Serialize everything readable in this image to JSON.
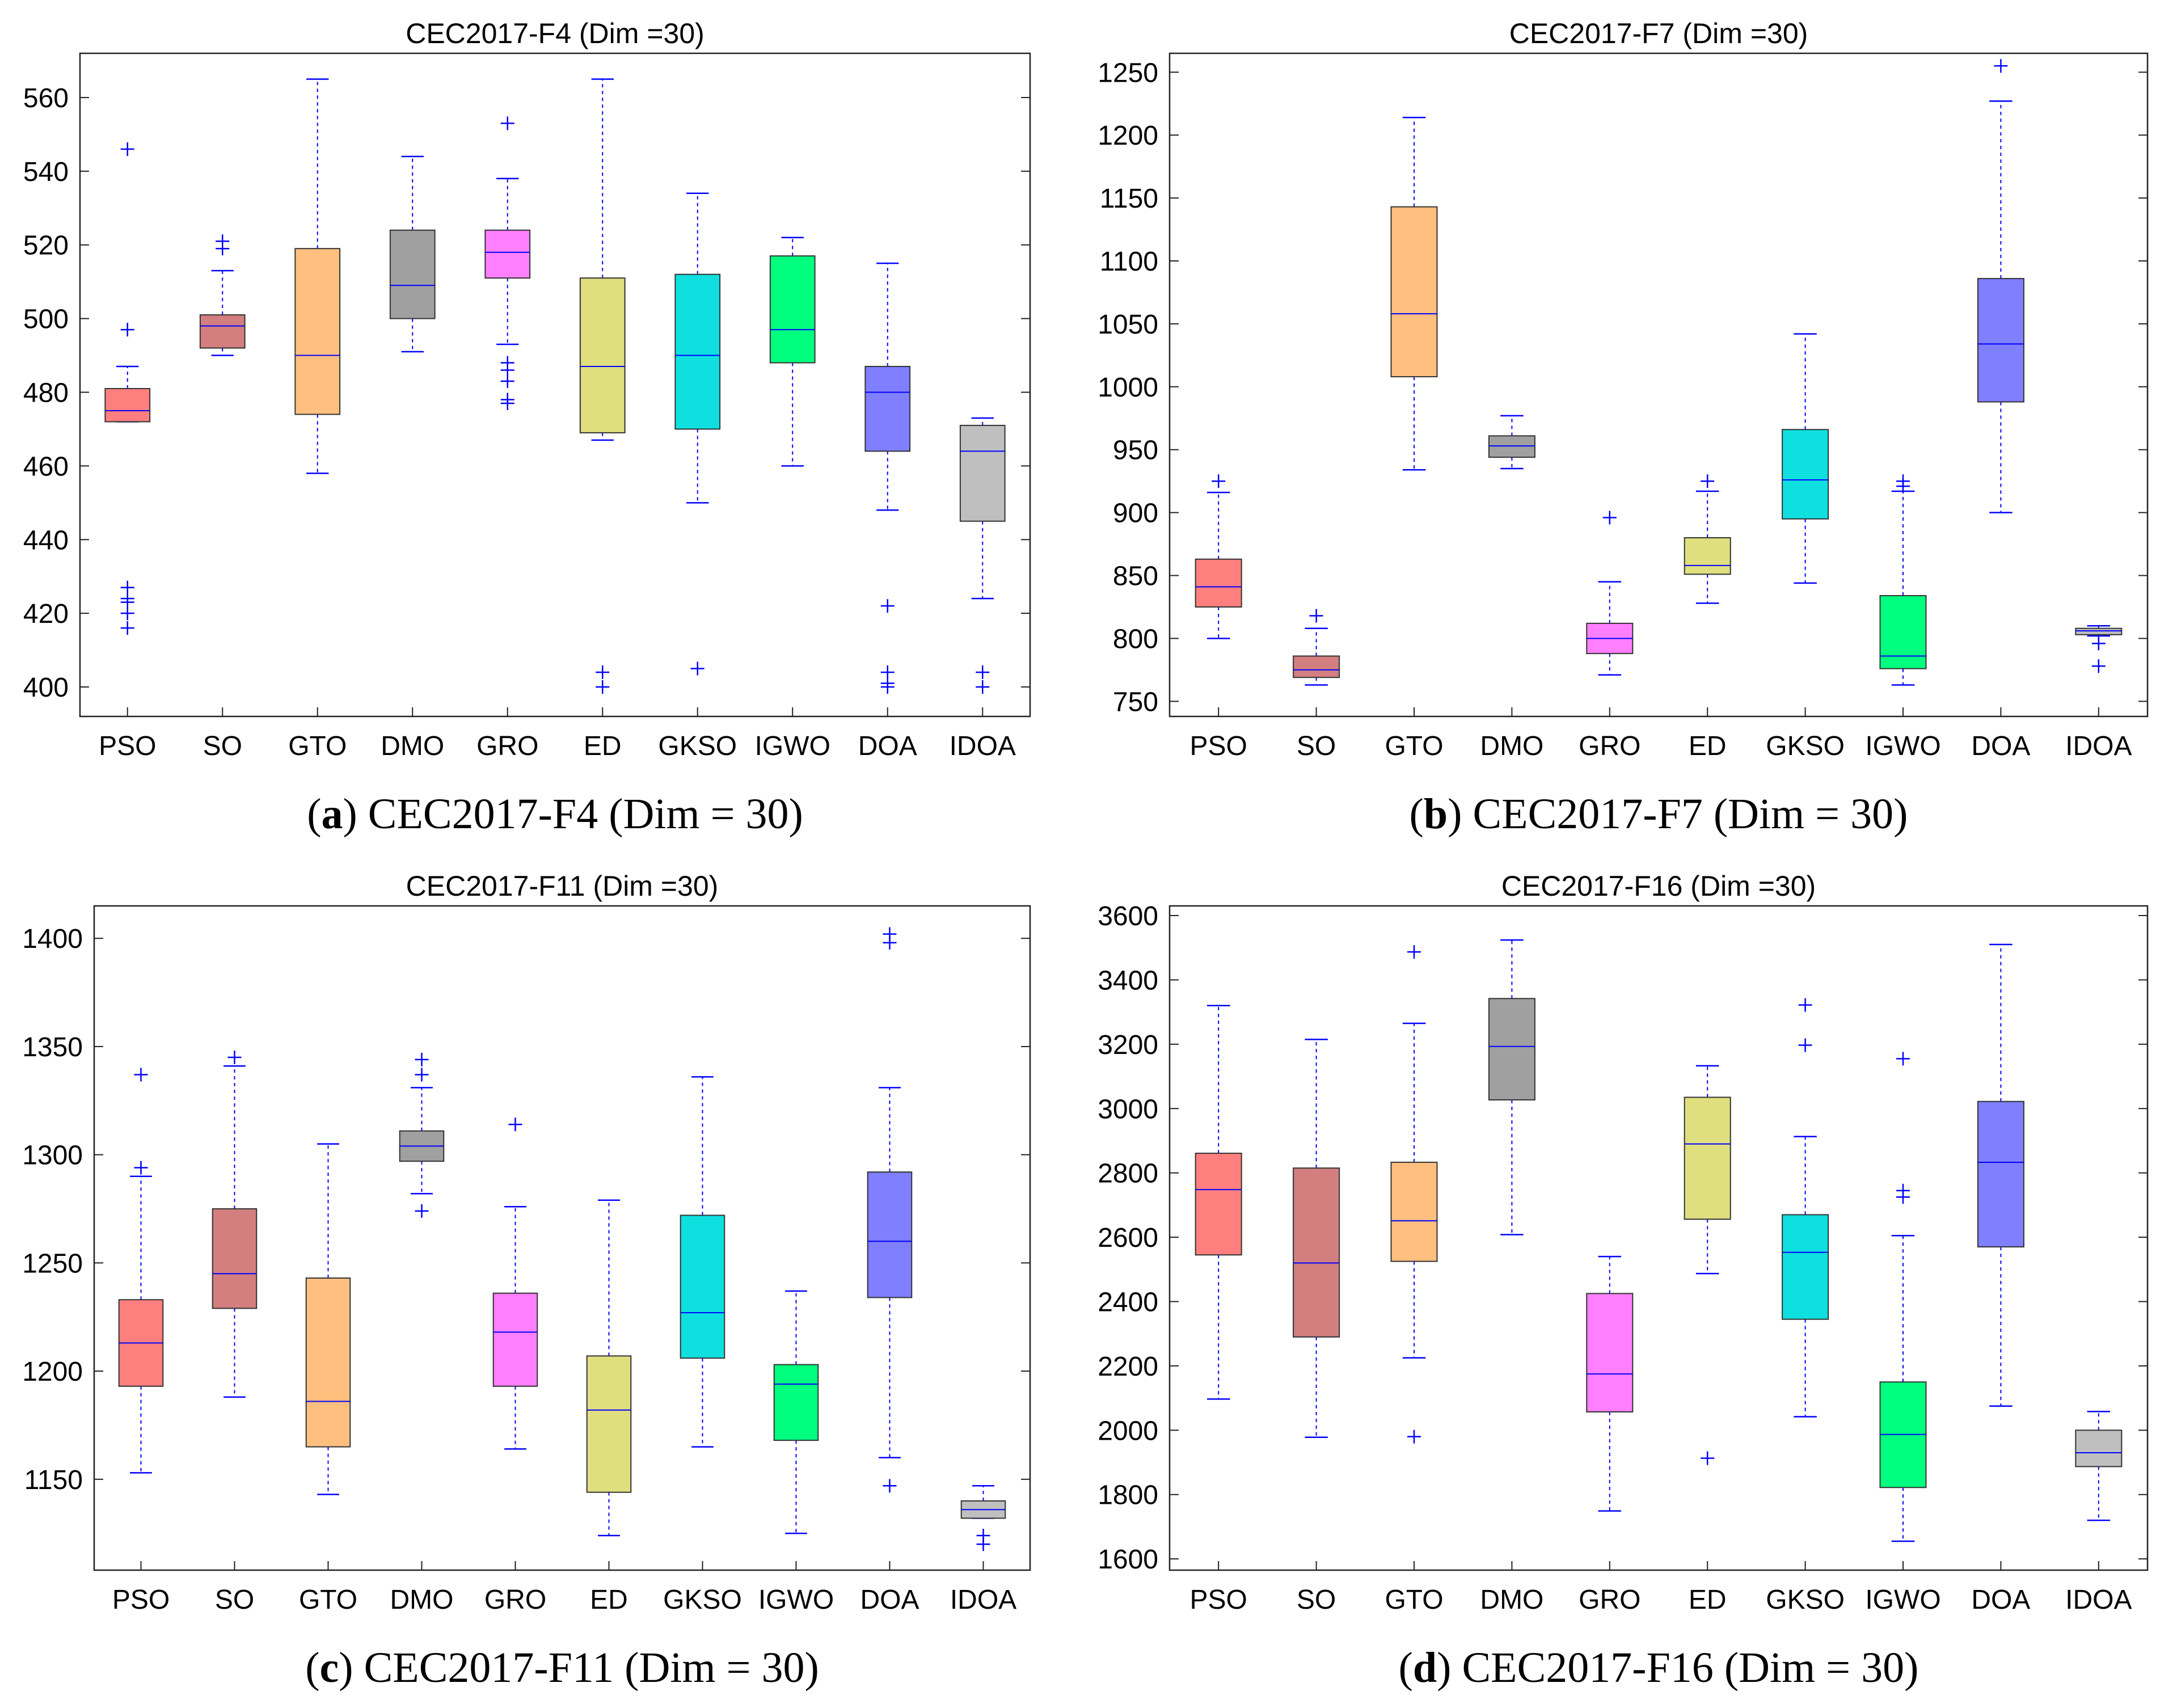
{
  "chart_data": [
    {
      "type": "boxplot",
      "title": "CEC2017-F4 (Dim =30)",
      "caption": {
        "letter": "a",
        "text": "CEC2017-F4 (Dim = 30)"
      },
      "ylim": [
        392,
        572
      ],
      "yticks": [
        400,
        420,
        440,
        460,
        480,
        500,
        520,
        540,
        560
      ],
      "categories": [
        "PSO",
        "SO",
        "GTO",
        "DMO",
        "GRO",
        "ED",
        "GKSO",
        "IGWO",
        "DOA",
        "IDOA"
      ],
      "boxes": [
        {
          "name": "PSO",
          "color": "#ff7f7f",
          "min": 472,
          "q1": 472,
          "median": 475,
          "q3": 481,
          "max": 487,
          "outliers": [
            546,
            497,
            427,
            424,
            423,
            420,
            416
          ]
        },
        {
          "name": "SO",
          "color": "#d37f7f",
          "min": 490,
          "q1": 492,
          "median": 498,
          "q3": 501,
          "max": 513,
          "outliers": [
            521,
            519
          ]
        },
        {
          "name": "GTO",
          "color": "#ffbf7f",
          "min": 458,
          "q1": 474,
          "median": 490,
          "q3": 519,
          "max": 565,
          "outliers": []
        },
        {
          "name": "DMO",
          "color": "#a0a0a0",
          "min": 491,
          "q1": 500,
          "median": 509,
          "q3": 524,
          "max": 544,
          "outliers": []
        },
        {
          "name": "GRO",
          "color": "#ff7fff",
          "min": 493,
          "q1": 511,
          "median": 518,
          "q3": 524,
          "max": 538,
          "outliers": [
            553,
            488,
            486,
            483,
            478,
            477
          ]
        },
        {
          "name": "ED",
          "color": "#dfdf7f",
          "min": 467,
          "q1": 469,
          "median": 487,
          "q3": 511,
          "max": 565,
          "outliers": [
            404,
            400
          ]
        },
        {
          "name": "GKSO",
          "color": "#0fdfdf",
          "min": 450,
          "q1": 470,
          "median": 490,
          "q3": 512,
          "max": 534,
          "outliers": [
            405
          ]
        },
        {
          "name": "IGWO",
          "color": "#00ff7f",
          "min": 460,
          "q1": 488,
          "median": 497,
          "q3": 517,
          "max": 522,
          "outliers": []
        },
        {
          "name": "DOA",
          "color": "#7f7fff",
          "min": 448,
          "q1": 464,
          "median": 480,
          "q3": 487,
          "max": 515,
          "outliers": [
            422,
            404,
            401,
            400
          ]
        },
        {
          "name": "IDOA",
          "color": "#bfbfbf",
          "min": 424,
          "q1": 445,
          "median": 464,
          "q3": 471,
          "max": 473,
          "outliers": [
            404,
            400
          ]
        }
      ]
    },
    {
      "type": "boxplot",
      "title": "CEC2017-F7 (Dim =30)",
      "caption": {
        "letter": "b",
        "text": "CEC2017-F7 (Dim = 30)"
      },
      "ylim": [
        738,
        1265
      ],
      "yticks": [
        750,
        800,
        850,
        900,
        950,
        1000,
        1050,
        1100,
        1150,
        1200,
        1250
      ],
      "categories": [
        "PSO",
        "SO",
        "GTO",
        "DMO",
        "GRO",
        "ED",
        "GKSO",
        "IGWO",
        "DOA",
        "IDOA"
      ],
      "boxes": [
        {
          "name": "PSO",
          "color": "#ff7f7f",
          "min": 800,
          "q1": 825,
          "median": 841,
          "q3": 863,
          "max": 916,
          "outliers": [
            925
          ]
        },
        {
          "name": "SO",
          "color": "#d37f7f",
          "min": 763,
          "q1": 769,
          "median": 775,
          "q3": 786,
          "max": 808,
          "outliers": [
            818
          ]
        },
        {
          "name": "GTO",
          "color": "#ffbf7f",
          "min": 934,
          "q1": 1008,
          "median": 1058,
          "q3": 1143,
          "max": 1214,
          "outliers": []
        },
        {
          "name": "DMO",
          "color": "#a0a0a0",
          "min": 935,
          "q1": 944,
          "median": 953,
          "q3": 961,
          "max": 977,
          "outliers": []
        },
        {
          "name": "GRO",
          "color": "#ff7fff",
          "min": 771,
          "q1": 788,
          "median": 800,
          "q3": 812,
          "max": 845,
          "outliers": [
            896
          ]
        },
        {
          "name": "ED",
          "color": "#dfdf7f",
          "min": 828,
          "q1": 851,
          "median": 858,
          "q3": 880,
          "max": 917,
          "outliers": [
            925
          ]
        },
        {
          "name": "GKSO",
          "color": "#0fdfdf",
          "min": 844,
          "q1": 895,
          "median": 926,
          "q3": 966,
          "max": 1042,
          "outliers": []
        },
        {
          "name": "IGWO",
          "color": "#00ff7f",
          "min": 763,
          "q1": 776,
          "median": 786,
          "q3": 834,
          "max": 917,
          "outliers": [
            925,
            921
          ]
        },
        {
          "name": "DOA",
          "color": "#7f7fff",
          "min": 900,
          "q1": 988,
          "median": 1034,
          "q3": 1086,
          "max": 1227,
          "outliers": [
            1255
          ]
        },
        {
          "name": "IDOA",
          "color": "#bfbfbf",
          "min": 802,
          "q1": 803,
          "median": 806,
          "q3": 808,
          "max": 810,
          "outliers": [
            796,
            778
          ]
        }
      ]
    },
    {
      "type": "boxplot",
      "title": "CEC2017-F11 (Dim =30)",
      "caption": {
        "letter": "c",
        "text": "CEC2017-F11 (Dim = 30)"
      },
      "ylim": [
        1108,
        1415
      ],
      "yticks": [
        1150,
        1200,
        1250,
        1300,
        1350,
        1400
      ],
      "categories": [
        "PSO",
        "SO",
        "GTO",
        "DMO",
        "GRO",
        "ED",
        "GKSO",
        "IGWO",
        "DOA",
        "IDOA"
      ],
      "boxes": [
        {
          "name": "PSO",
          "color": "#ff7f7f",
          "min": 1153,
          "q1": 1193,
          "median": 1213,
          "q3": 1233,
          "max": 1290,
          "outliers": [
            1337,
            1294
          ]
        },
        {
          "name": "SO",
          "color": "#d37f7f",
          "min": 1188,
          "q1": 1229,
          "median": 1245,
          "q3": 1275,
          "max": 1341,
          "outliers": [
            1345
          ]
        },
        {
          "name": "GTO",
          "color": "#ffbf7f",
          "min": 1143,
          "q1": 1165,
          "median": 1186,
          "q3": 1243,
          "max": 1305,
          "outliers": []
        },
        {
          "name": "DMO",
          "color": "#a0a0a0",
          "min": 1282,
          "q1": 1297,
          "median": 1304,
          "q3": 1311,
          "max": 1331,
          "outliers": [
            1344,
            1337,
            1274
          ]
        },
        {
          "name": "GRO",
          "color": "#ff7fff",
          "min": 1164,
          "q1": 1193,
          "median": 1218,
          "q3": 1236,
          "max": 1276,
          "outliers": [
            1314
          ]
        },
        {
          "name": "ED",
          "color": "#dfdf7f",
          "min": 1124,
          "q1": 1144,
          "median": 1182,
          "q3": 1207,
          "max": 1279,
          "outliers": []
        },
        {
          "name": "GKSO",
          "color": "#0fdfdf",
          "min": 1165,
          "q1": 1206,
          "median": 1227,
          "q3": 1272,
          "max": 1336,
          "outliers": []
        },
        {
          "name": "IGWO",
          "color": "#00ff7f",
          "min": 1125,
          "q1": 1168,
          "median": 1194,
          "q3": 1203,
          "max": 1237,
          "outliers": []
        },
        {
          "name": "DOA",
          "color": "#7f7fff",
          "min": 1160,
          "q1": 1234,
          "median": 1260,
          "q3": 1292,
          "max": 1331,
          "outliers": [
            1402,
            1398,
            1147
          ]
        },
        {
          "name": "IDOA",
          "color": "#bfbfbf",
          "min": 1132,
          "q1": 1132,
          "median": 1136,
          "q3": 1140,
          "max": 1147,
          "outliers": [
            1124,
            1120
          ]
        }
      ]
    },
    {
      "type": "boxplot",
      "title": "CEC2017-F16 (Dim =30)",
      "caption": {
        "letter": "d",
        "text": "CEC2017-F16 (Dim = 30)"
      },
      "ylim": [
        1565,
        3630
      ],
      "yticks": [
        1600,
        1800,
        2000,
        2200,
        2400,
        2600,
        2800,
        3000,
        3200,
        3400,
        3600
      ],
      "categories": [
        "PSO",
        "SO",
        "GTO",
        "DMO",
        "GRO",
        "ED",
        "GKSO",
        "IGWO",
        "DOA",
        "IDOA"
      ],
      "boxes": [
        {
          "name": "PSO",
          "color": "#ff7f7f",
          "min": 2097,
          "q1": 2545,
          "median": 2748,
          "q3": 2861,
          "max": 3320,
          "outliers": []
        },
        {
          "name": "SO",
          "color": "#d37f7f",
          "min": 1978,
          "q1": 2290,
          "median": 2520,
          "q3": 2815,
          "max": 3215,
          "outliers": []
        },
        {
          "name": "GTO",
          "color": "#ffbf7f",
          "min": 2225,
          "q1": 2525,
          "median": 2651,
          "q3": 2833,
          "max": 3265,
          "outliers": [
            3487,
            1980
          ]
        },
        {
          "name": "DMO",
          "color": "#a0a0a0",
          "min": 2608,
          "q1": 3027,
          "median": 3193,
          "q3": 3342,
          "max": 3524,
          "outliers": []
        },
        {
          "name": "GRO",
          "color": "#ff7fff",
          "min": 1749,
          "q1": 2057,
          "median": 2175,
          "q3": 2425,
          "max": 2540,
          "outliers": []
        },
        {
          "name": "ED",
          "color": "#dfdf7f",
          "min": 2487,
          "q1": 2656,
          "median": 2890,
          "q3": 3035,
          "max": 3133,
          "outliers": [
            1913
          ]
        },
        {
          "name": "GKSO",
          "color": "#0fdfdf",
          "min": 2042,
          "q1": 2345,
          "median": 2553,
          "q3": 2670,
          "max": 2913,
          "outliers": [
            3322,
            3197
          ]
        },
        {
          "name": "IGWO",
          "color": "#00ff7f",
          "min": 1655,
          "q1": 1822,
          "median": 1987,
          "q3": 2150,
          "max": 2605,
          "outliers": [
            3155,
            2745,
            2725
          ]
        },
        {
          "name": "DOA",
          "color": "#7f7fff",
          "min": 2075,
          "q1": 2570,
          "median": 2833,
          "q3": 3022,
          "max": 3510,
          "outliers": []
        },
        {
          "name": "IDOA",
          "color": "#bfbfbf",
          "min": 1720,
          "q1": 1887,
          "median": 1930,
          "q3": 2000,
          "max": 2058,
          "outliers": []
        }
      ]
    }
  ]
}
